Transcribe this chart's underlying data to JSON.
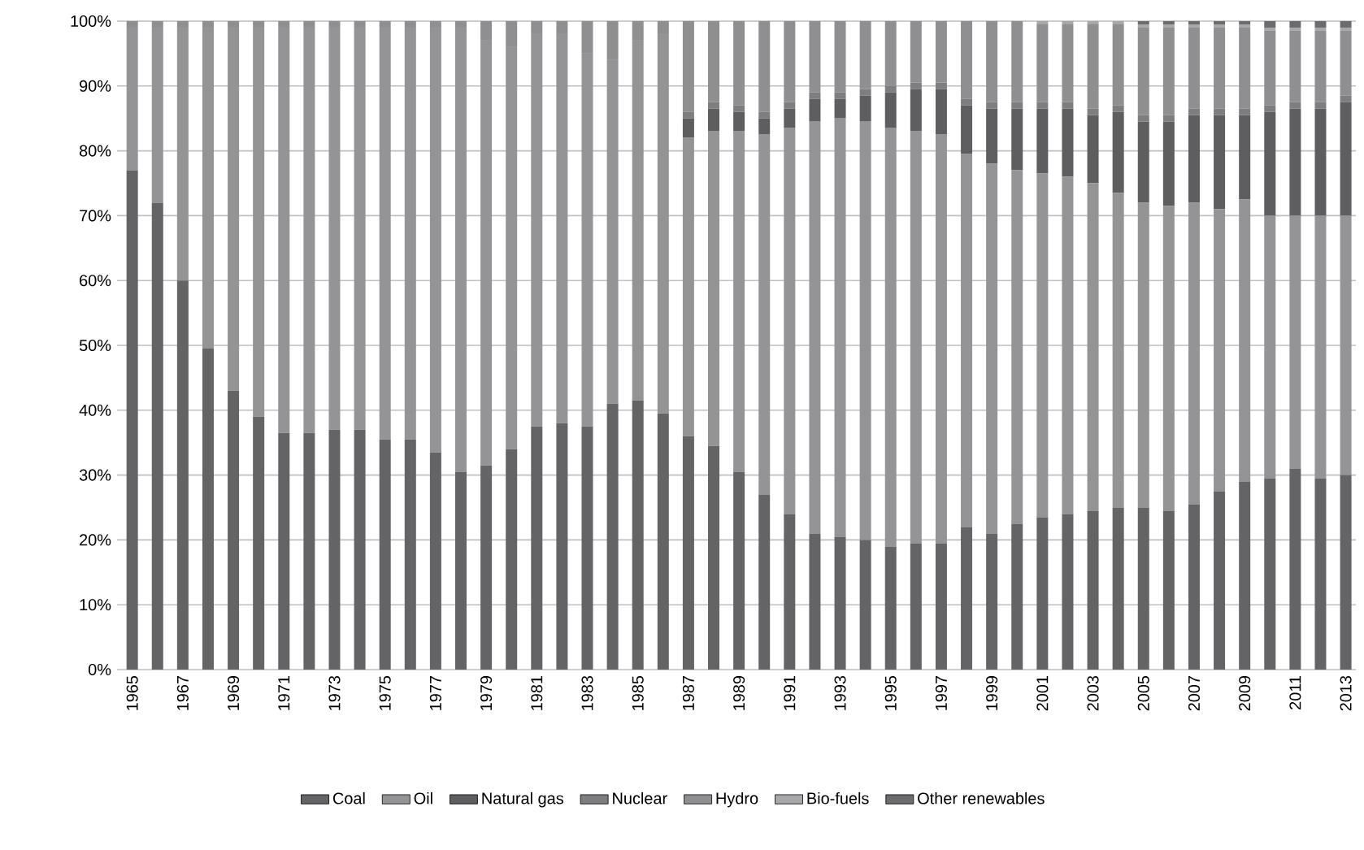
{
  "chart_data": {
    "type": "bar",
    "stacked": true,
    "categories": [
      "1965",
      null,
      "1967",
      null,
      "1969",
      null,
      "1971",
      null,
      "1973",
      null,
      "1975",
      null,
      "1977",
      null,
      "1979",
      null,
      "1981",
      null,
      "1983",
      null,
      "1985",
      null,
      "1987",
      null,
      "1989",
      null,
      "1991",
      null,
      "1993",
      null,
      "1995",
      null,
      "1997",
      null,
      "1999",
      null,
      "2001",
      null,
      "2003",
      null,
      "2005",
      null,
      "2007",
      null,
      "2009",
      null,
      "2011",
      null,
      "2013"
    ],
    "series": [
      {
        "name": "Coal",
        "color": "#646467",
        "values": [
          77,
          72,
          60,
          49.5,
          43,
          39,
          36.5,
          36.5,
          37,
          37,
          35.5,
          35.5,
          33.5,
          30.5,
          31.5,
          34,
          37.5,
          38,
          37.5,
          41,
          41.5,
          39.5,
          36,
          34.5,
          30.5,
          27,
          24,
          21,
          20.5,
          20,
          19,
          19.5,
          19.5,
          22,
          21,
          22.5,
          23.5,
          24,
          24.5,
          25,
          25,
          24.5,
          25.5,
          27.5,
          29,
          29.5,
          31,
          29.5,
          30
        ]
      },
      {
        "name": "Oil",
        "color": "#949497",
        "values": [
          22,
          27,
          39,
          49.5,
          56,
          60,
          62.5,
          62.5,
          62,
          62,
          63.5,
          63.5,
          65.5,
          68.5,
          65.5,
          62,
          60.5,
          60,
          57.5,
          53,
          55.5,
          58.5,
          46,
          48.5,
          52.5,
          55.5,
          59.5,
          63.5,
          64.5,
          64.5,
          64.5,
          63.5,
          63,
          57.5,
          57,
          54.5,
          53,
          52,
          50.5,
          48.5,
          47,
          47,
          46.5,
          43.5,
          43.5,
          40.5,
          39,
          40.5,
          40
        ]
      },
      {
        "name": "Natural gas",
        "color": "#5e5e61",
        "values": [
          0,
          0,
          0,
          0,
          0,
          0,
          0,
          0,
          0,
          0,
          0,
          0,
          0,
          0,
          0,
          0,
          0,
          0,
          0,
          0,
          0,
          0,
          3,
          3.5,
          3,
          2.5,
          3,
          3.5,
          3,
          4,
          5.5,
          6.5,
          7,
          7.5,
          8.5,
          9.5,
          10,
          10.5,
          10.5,
          12.5,
          12.5,
          13,
          13.5,
          14.5,
          13,
          16,
          16.5,
          16.5,
          17.5
        ]
      },
      {
        "name": "Nuclear",
        "color": "#7e7e81",
        "values": [
          0,
          0,
          0,
          0,
          0,
          0,
          0,
          0,
          0,
          0,
          0,
          0,
          0,
          0,
          0,
          0,
          0,
          0,
          0,
          0,
          0,
          0,
          1,
          1,
          1,
          1,
          1,
          1,
          1,
          1,
          1,
          1,
          1,
          1,
          1,
          1,
          1,
          1,
          1,
          1,
          1,
          1,
          1,
          1,
          1,
          1,
          1,
          1,
          1
        ]
      },
      {
        "name": "Hydro",
        "color": "#8f8f92",
        "values": [
          1,
          1,
          1,
          1,
          1,
          1,
          1,
          1,
          1,
          1,
          1,
          1,
          1,
          1,
          3,
          4,
          2,
          2,
          5,
          6,
          3,
          2,
          14,
          12.5,
          13,
          14,
          12.5,
          11,
          11,
          10.5,
          10,
          9.5,
          9.5,
          12,
          12.5,
          12.5,
          12,
          12,
          13,
          12.5,
          13.5,
          13.5,
          12.5,
          12.5,
          12.5,
          11.5,
          11,
          11,
          10
        ]
      },
      {
        "name": "Bio-fuels",
        "color": "#a8a8ab",
        "values": [
          0,
          0,
          0,
          0,
          0,
          0,
          0,
          0,
          0,
          0,
          0,
          0,
          0,
          0,
          0,
          0,
          0,
          0,
          0,
          0,
          0,
          0,
          0,
          0,
          0,
          0,
          0,
          0,
          0,
          0,
          0,
          0,
          0,
          0,
          0,
          0,
          0.5,
          0.5,
          0.5,
          0.5,
          0.5,
          0.5,
          0.5,
          0.5,
          0.5,
          0.5,
          0.5,
          0.5,
          0.5
        ]
      },
      {
        "name": "Other renewables",
        "color": "#6c6c6f",
        "values": [
          0,
          0,
          0,
          0,
          0,
          0,
          0,
          0,
          0,
          0,
          0,
          0,
          0,
          0,
          0,
          0,
          0,
          0,
          0,
          0,
          0,
          0,
          0,
          0,
          0,
          0,
          0,
          0,
          0,
          0,
          0,
          0,
          0,
          0,
          0,
          0,
          0,
          0,
          0,
          0,
          0.5,
          0.5,
          0.5,
          0.5,
          0.5,
          1,
          1,
          1,
          1
        ]
      }
    ],
    "ylim": [
      0,
      100
    ],
    "yticks": [
      {
        "value": 0,
        "label": "0%"
      },
      {
        "value": 10,
        "label": "10%"
      },
      {
        "value": 20,
        "label": "20%"
      },
      {
        "value": 30,
        "label": "30%"
      },
      {
        "value": 40,
        "label": "40%"
      },
      {
        "value": 50,
        "label": "50%"
      },
      {
        "value": 60,
        "label": "60%"
      },
      {
        "value": 70,
        "label": "70%"
      },
      {
        "value": 80,
        "label": "80%"
      },
      {
        "value": 90,
        "label": "90%"
      },
      {
        "value": 100,
        "label": "100%"
      }
    ],
    "grid": "y",
    "legend": "bottom"
  }
}
